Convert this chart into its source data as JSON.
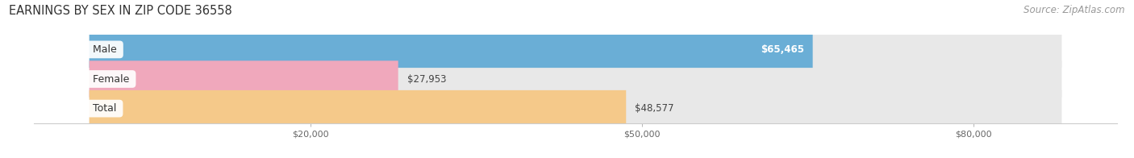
{
  "title": "EARNINGS BY SEX IN ZIP CODE 36558",
  "source": "Source: ZipAtlas.com",
  "categories": [
    "Male",
    "Female",
    "Total"
  ],
  "values": [
    65465,
    27953,
    48577
  ],
  "bar_colors": [
    "#6aaed6",
    "#f0a8bc",
    "#f5c98a"
  ],
  "x_ticks": [
    20000,
    50000,
    80000
  ],
  "x_tick_labels": [
    "$20,000",
    "$50,000",
    "$80,000"
  ],
  "xlim": [
    -5000,
    93000
  ],
  "bar_background": "#e8e8e8",
  "background_color": "#ffffff",
  "title_fontsize": 10.5,
  "source_fontsize": 8.5,
  "bar_height": 0.62,
  "value_fontsize": 8.5,
  "label_fontsize": 9,
  "label_inside": [
    true,
    false,
    false
  ]
}
